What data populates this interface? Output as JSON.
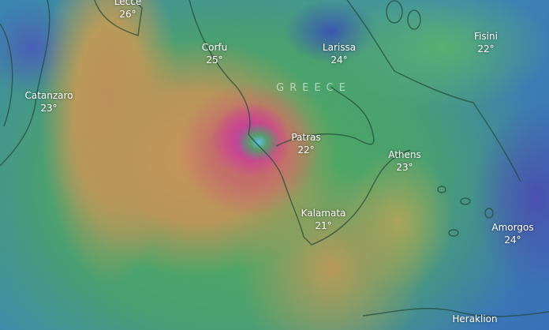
{
  "country_label": "GREECE",
  "cities": [
    {
      "name": "Lecce",
      "temp": "26°"
    },
    {
      "name": "Corfu",
      "temp": "25°"
    },
    {
      "name": "Larissa",
      "temp": "24°"
    },
    {
      "name": "Fisini",
      "temp": "22°"
    },
    {
      "name": "Catanzaro",
      "temp": "23°"
    },
    {
      "name": "Patras",
      "temp": "22°"
    },
    {
      "name": "Athens",
      "temp": "23°"
    },
    {
      "name": "Kalamata",
      "temp": "21°"
    },
    {
      "name": "Amorgos",
      "temp": "24°"
    },
    {
      "name": "Heraklion",
      "temp": ""
    }
  ],
  "colors": {
    "calm": "#3f7fb8",
    "moderate": "#4cae5a",
    "strong": "#c8955a",
    "severe": "#b040b0"
  }
}
